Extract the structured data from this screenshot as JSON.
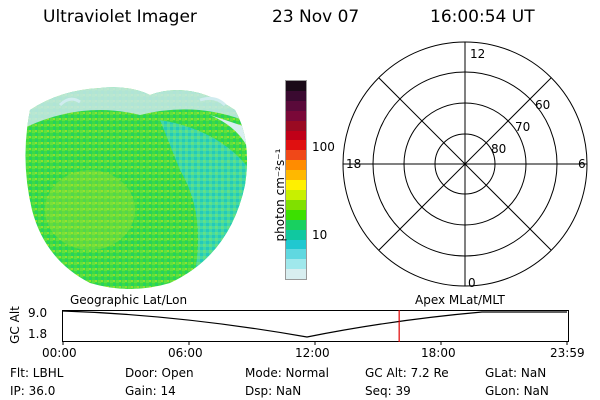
{
  "header": {
    "instrument": "Ultraviolet Imager",
    "date": "23 Nov 07",
    "time": "16:00:54 UT"
  },
  "colorbar": {
    "label": "photon cm⁻²s⁻¹",
    "ticks": [
      "100",
      "10"
    ],
    "colors": [
      "#1a0a18",
      "#3a0a30",
      "#5a0a3a",
      "#7a0838",
      "#9a0a22",
      "#c00018",
      "#e01010",
      "#f04818",
      "#ff8c00",
      "#ffb800",
      "#fff000",
      "#c8f000",
      "#80e000",
      "#3ce000",
      "#18d060",
      "#10c8a0",
      "#20c8d0",
      "#60d8e0",
      "#a0e8ec",
      "#d8eef0"
    ]
  },
  "polar": {
    "mlt_labels": {
      "top": "12",
      "bottom": "0",
      "left": "18",
      "right": "6"
    },
    "lat_labels": [
      "60",
      "70",
      "80"
    ]
  },
  "strip": {
    "left_label": "Geographic Lat/Lon",
    "right_label": "Apex MLat/MLT",
    "axis_title": "GC Alt",
    "y_ticks": [
      "9.0",
      "1.8"
    ],
    "x_ticks": [
      "00:00",
      "06:00",
      "12:00",
      "18:00",
      "23:59"
    ]
  },
  "footer": {
    "filter": "Flt: LBHL",
    "ip": "IP: 36.0",
    "door": "Door: Open",
    "gain": "Gain: 14",
    "mode": "Mode: Normal",
    "dsp": "Dsp:      NaN",
    "gc_alt": "GC Alt: 7.2 Re",
    "seq": "Seq: 39",
    "glat": "GLat:      NaN",
    "glon": "GLon:     NaN"
  },
  "marker_time_fraction": 0.667
}
